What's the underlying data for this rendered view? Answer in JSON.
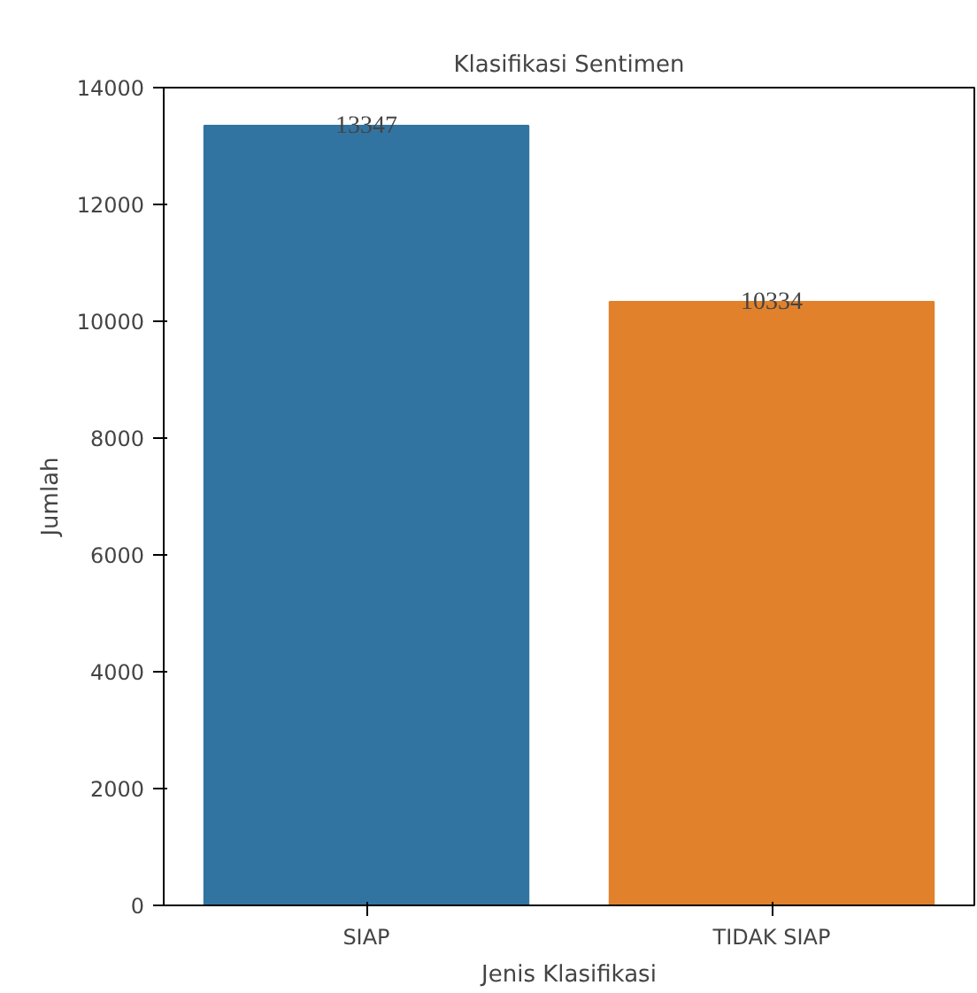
{
  "chart_data": {
    "type": "bar",
    "title": "Klasifikasi Sentimen",
    "xlabel": "Jenis Klasifikasi",
    "ylabel": "Jumlah",
    "categories": [
      "SIAP",
      "TIDAK SIAP"
    ],
    "values": [
      13347,
      10334
    ],
    "colors": [
      "#3274a1",
      "#e1812c"
    ],
    "ylim": [
      0,
      14000
    ],
    "yticks": [
      0,
      2000,
      4000,
      6000,
      8000,
      10000,
      12000,
      14000
    ],
    "data_labels": true
  }
}
